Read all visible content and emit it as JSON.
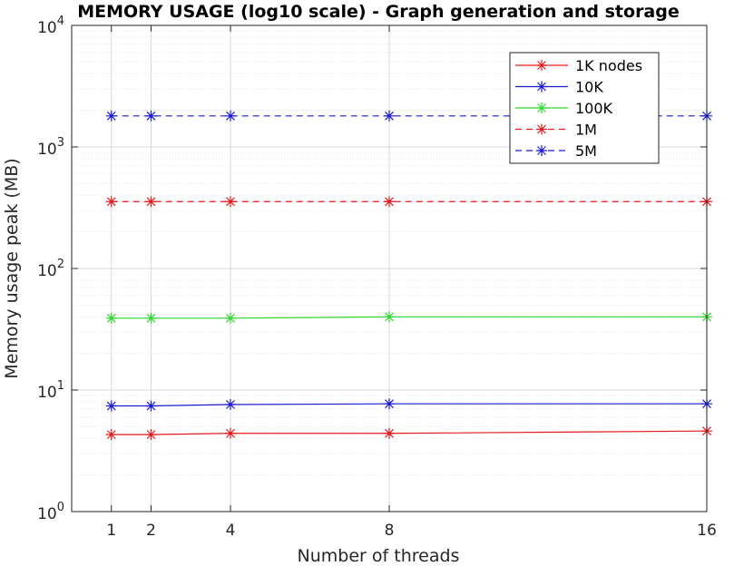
{
  "chart_data": {
    "type": "line",
    "title": "MEMORY USAGE (log10 scale) - Graph generation and storage",
    "xlabel": "Number of threads",
    "ylabel": "Memory usage peak (MB)",
    "x": [
      1,
      2,
      4,
      8,
      16
    ],
    "xlim": [
      0,
      16
    ],
    "ylim": [
      1,
      10000
    ],
    "yscale": "log10",
    "xticks": [
      1,
      2,
      4,
      8,
      16
    ],
    "yticks": [
      {
        "value": 1,
        "base": "10",
        "exp": "0"
      },
      {
        "value": 10,
        "base": "10",
        "exp": "1"
      },
      {
        "value": 100,
        "base": "10",
        "exp": "2"
      },
      {
        "value": 1000,
        "base": "10",
        "exp": "3"
      },
      {
        "value": 10000,
        "base": "10",
        "exp": "4"
      }
    ],
    "grid": true,
    "legend_position": "top-right",
    "series": [
      {
        "name": "1K nodes",
        "color": "#e41a1c",
        "dash": "solid",
        "marker": "asterisk",
        "values": [
          4.3,
          4.3,
          4.4,
          4.4,
          4.6
        ]
      },
      {
        "name": "10K",
        "color": "#1a1ad6",
        "dash": "solid",
        "marker": "asterisk",
        "values": [
          7.4,
          7.4,
          7.6,
          7.7,
          7.7
        ]
      },
      {
        "name": "100K",
        "color": "#2fd62f",
        "dash": "solid",
        "marker": "asterisk",
        "values": [
          39,
          39,
          39,
          40,
          40
        ]
      },
      {
        "name": "1M",
        "color": "#e41a1c",
        "dash": "dashed",
        "marker": "asterisk",
        "values": [
          355,
          355,
          355,
          355,
          355
        ]
      },
      {
        "name": "5M",
        "color": "#1a1ad6",
        "dash": "dashed",
        "marker": "asterisk",
        "values": [
          1800,
          1800,
          1800,
          1800,
          1800
        ]
      }
    ]
  }
}
